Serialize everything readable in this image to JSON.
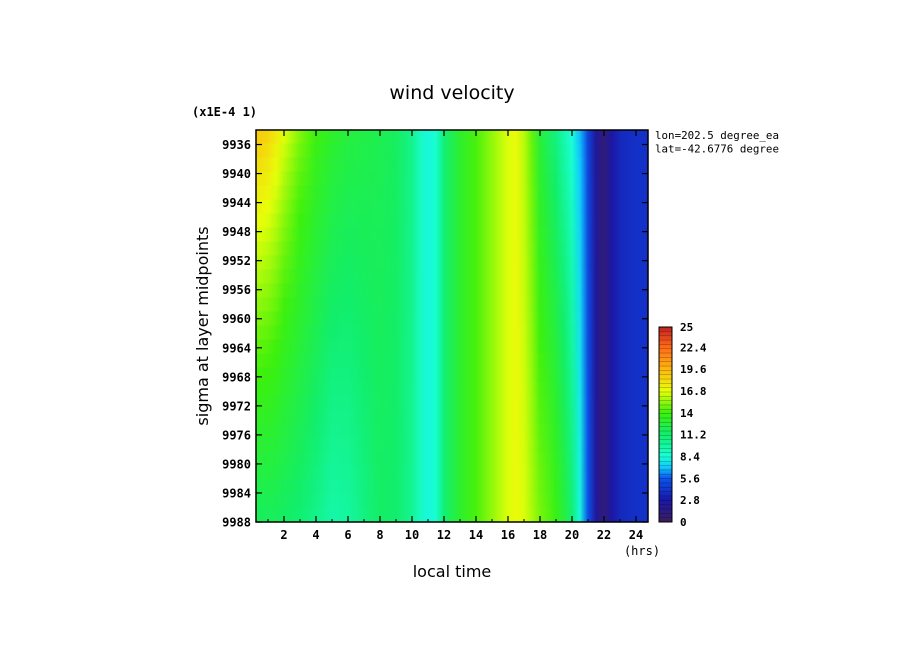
{
  "chart_data": {
    "type": "heatmap",
    "title": "wind velocity",
    "xlabel": "local time",
    "ylabel": "sigma at layer midpoints",
    "x_unit": "(hrs)",
    "y_scale_note": "(x1E-4 1)",
    "info_lines": [
      "lon=202.5 degree_ea",
      "lat=-42.6776 degree"
    ],
    "xlim": [
      0.25,
      24.75
    ],
    "ylim": [
      9988,
      9934
    ],
    "x_ticks": [
      2,
      4,
      6,
      8,
      10,
      12,
      14,
      16,
      18,
      20,
      22,
      24
    ],
    "y_ticks": [
      9936,
      9940,
      9944,
      9948,
      9952,
      9956,
      9960,
      9964,
      9968,
      9972,
      9976,
      9980,
      9984,
      9988
    ],
    "colorbar": {
      "min": 0,
      "max": 25,
      "tick_labels": [
        "25",
        "22.4",
        "19.6",
        "16.8",
        "14",
        "11.2",
        "8.4",
        "5.6",
        "2.8",
        "0"
      ],
      "stops": [
        {
          "value": 0,
          "color": "#3c1f5e"
        },
        {
          "value": 2.8,
          "color": "#1a16a8"
        },
        {
          "value": 5.6,
          "color": "#0a55ee"
        },
        {
          "value": 7.0,
          "color": "#10c8ff"
        },
        {
          "value": 8.4,
          "color": "#19ffd6"
        },
        {
          "value": 11.2,
          "color": "#11ee6c"
        },
        {
          "value": 14,
          "color": "#3cf00c"
        },
        {
          "value": 16.8,
          "color": "#e8ff0a"
        },
        {
          "value": 19.6,
          "color": "#ffb70f"
        },
        {
          "value": 22.4,
          "color": "#ff6a18"
        },
        {
          "value": 25,
          "color": "#c42020"
        }
      ]
    },
    "field_description_x": [
      0.5,
      1,
      1.5,
      2,
      3,
      4,
      5,
      6,
      7,
      8,
      9,
      10,
      10.5,
      11,
      11.5,
      12,
      13,
      14,
      15,
      16,
      16.5,
      17,
      17.5,
      18,
      19,
      19.5,
      20,
      20.5,
      21,
      21.5,
      22,
      22.5,
      23,
      24,
      24.5
    ],
    "field_top_values": [
      19.0,
      18.6,
      17.8,
      16.8,
      15.2,
      14.0,
      13.2,
      12.6,
      12.3,
      12.0,
      11.6,
      10.4,
      9.0,
      8.2,
      8.6,
      11.0,
      13.0,
      14.2,
      15.4,
      16.6,
      17.0,
      16.0,
      14.6,
      12.6,
      10.6,
      9.4,
      8.3,
      6.8,
      4.8,
      2.2,
      1.0,
      2.6,
      3.6,
      4.0,
      4.0
    ],
    "field_bottom_values": [
      11.6,
      11.6,
      11.6,
      11.4,
      11.0,
      10.4,
      9.6,
      9.8,
      10.6,
      11.4,
      11.2,
      10.2,
      9.0,
      8.2,
      8.6,
      11.0,
      13.0,
      14.2,
      15.4,
      16.6,
      17.0,
      16.6,
      15.8,
      15.0,
      13.8,
      12.6,
      11.0,
      8.2,
      5.4,
      2.2,
      1.0,
      2.6,
      3.6,
      4.0,
      4.0
    ]
  }
}
